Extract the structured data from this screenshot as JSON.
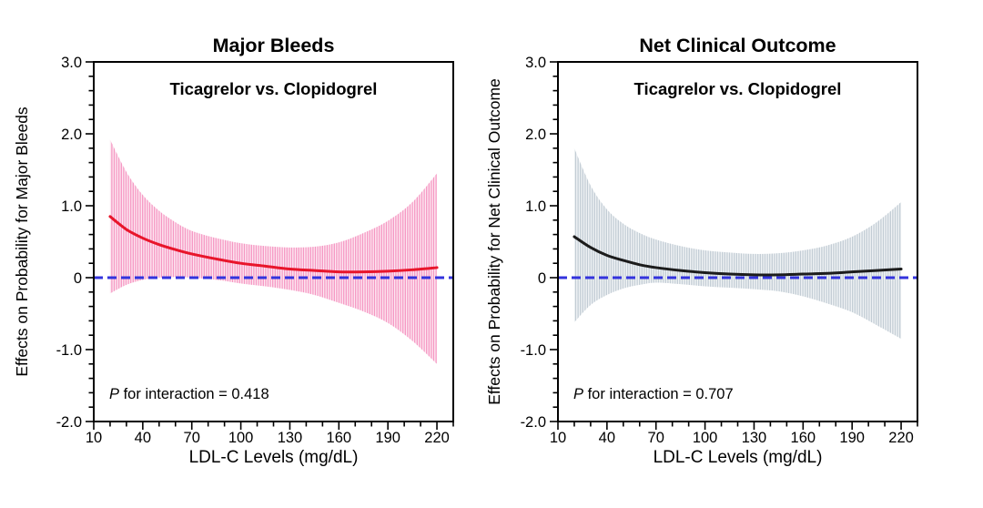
{
  "figure": {
    "background": "#ffffff",
    "axis_color": "#000000",
    "zero_line_color": "#3333dd"
  },
  "chart_data": [
    {
      "type": "line",
      "title": "Major Bleeds",
      "subtitle": "Ticagrelor vs. Clopidogrel",
      "xlabel": "LDL-C Levels (mg/dL)",
      "ylabel": "Effects on Probability for Major Bleeds",
      "annotation": {
        "italic_prefix": "P",
        "rest": " for interaction = 0.418"
      },
      "xlim": [
        10,
        230
      ],
      "ylim": [
        -2.0,
        3.0
      ],
      "xticks": [
        10,
        40,
        70,
        100,
        130,
        160,
        190,
        220
      ],
      "x_minor_step": 10,
      "ytick_values": [
        -2,
        -1,
        0,
        1,
        2,
        3
      ],
      "ytick_labels": [
        "-2.0",
        "-1.0",
        "0",
        "1.0",
        "2.0",
        "3.0"
      ],
      "y_minor_step": 0.2,
      "grid": false,
      "legend": "none",
      "zero_reference_line": 0,
      "line_color": "#e8152b",
      "band_fill": "#fde9f2",
      "band_hatch": "#f592c0",
      "x": [
        20,
        30,
        40,
        50,
        60,
        70,
        85,
        100,
        115,
        130,
        145,
        160,
        175,
        190,
        205,
        220
      ],
      "estimate": [
        0.85,
        0.67,
        0.55,
        0.46,
        0.39,
        0.33,
        0.26,
        0.2,
        0.16,
        0.12,
        0.1,
        0.08,
        0.08,
        0.09,
        0.11,
        0.14
      ],
      "ci_upper": [
        1.92,
        1.47,
        1.15,
        0.93,
        0.77,
        0.65,
        0.55,
        0.48,
        0.44,
        0.42,
        0.43,
        0.49,
        0.62,
        0.79,
        1.05,
        1.45
      ],
      "ci_lower": [
        -0.22,
        -0.1,
        -0.03,
        0.0,
        0.01,
        0.0,
        -0.03,
        -0.08,
        -0.12,
        -0.17,
        -0.24,
        -0.35,
        -0.47,
        -0.63,
        -0.88,
        -1.2
      ]
    },
    {
      "type": "line",
      "title": "Net Clinical Outcome",
      "subtitle": "Ticagrelor vs. Clopidogrel",
      "xlabel": "LDL-C Levels (mg/dL)",
      "ylabel": "Effects on Probability for Net Clinical Outcome",
      "annotation": {
        "italic_prefix": "P",
        "rest": " for interaction = 0.707"
      },
      "xlim": [
        10,
        230
      ],
      "ylim": [
        -2.0,
        3.0
      ],
      "xticks": [
        10,
        40,
        70,
        100,
        130,
        160,
        190,
        220
      ],
      "x_minor_step": 10,
      "ytick_values": [
        -2,
        -1,
        0,
        1,
        2,
        3
      ],
      "ytick_labels": [
        "-2.0",
        "-1.0",
        "0",
        "1.0",
        "2.0",
        "3.0"
      ],
      "y_minor_step": 0.2,
      "grid": false,
      "legend": "none",
      "zero_reference_line": 0,
      "line_color": "#1c1c1c",
      "band_fill": "#f1f4f6",
      "band_hatch": "#bfc9d2",
      "x": [
        20,
        30,
        40,
        50,
        60,
        70,
        85,
        100,
        115,
        130,
        145,
        160,
        175,
        190,
        205,
        220
      ],
      "estimate": [
        0.57,
        0.42,
        0.31,
        0.24,
        0.18,
        0.14,
        0.1,
        0.07,
        0.05,
        0.04,
        0.04,
        0.05,
        0.06,
        0.08,
        0.1,
        0.12
      ],
      "ci_upper": [
        1.8,
        1.28,
        0.95,
        0.75,
        0.62,
        0.53,
        0.44,
        0.38,
        0.35,
        0.33,
        0.34,
        0.38,
        0.45,
        0.57,
        0.77,
        1.05
      ],
      "ci_lower": [
        -0.62,
        -0.38,
        -0.24,
        -0.15,
        -0.1,
        -0.07,
        -0.09,
        -0.12,
        -0.14,
        -0.16,
        -0.19,
        -0.26,
        -0.36,
        -0.48,
        -0.66,
        -0.85
      ]
    }
  ]
}
